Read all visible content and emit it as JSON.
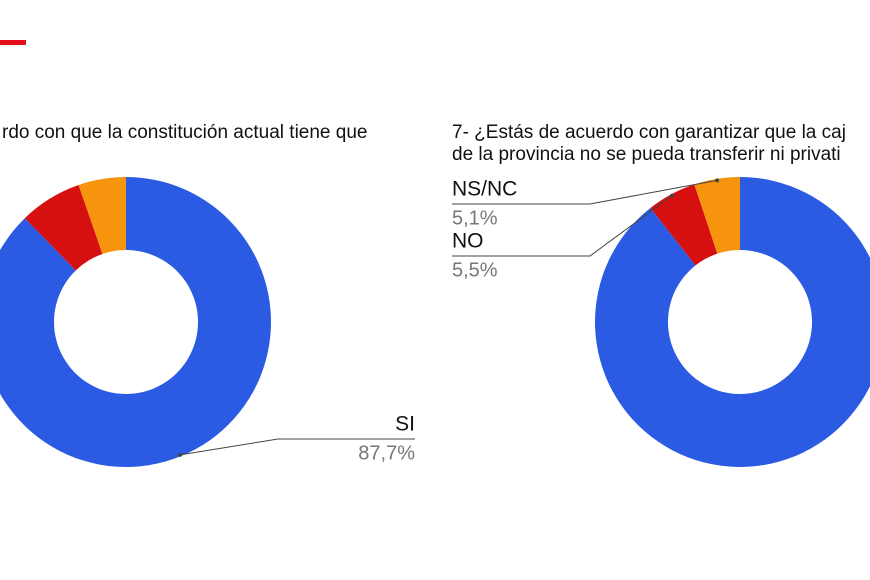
{
  "chart_data": [
    {
      "type": "donut",
      "title": "rdo con que la constitución actual tiene que",
      "categories": [
        "SI",
        null,
        null
      ],
      "values": [
        87.7,
        7.0,
        5.3
      ],
      "value_labels": [
        "87,7%",
        null,
        null
      ],
      "colors": [
        "#2b5be3",
        "#d60f10",
        "#f6950d"
      ]
    },
    {
      "type": "donut",
      "title": [
        "7- ¿Estás de acuerdo con garantizar que la caj",
        "de la provincia no se pueda transferir ni privati"
      ],
      "categories": [
        null,
        "NO",
        "NS/NC"
      ],
      "values": [
        89.4,
        5.5,
        5.1
      ],
      "value_labels": [
        null,
        "5,5%",
        "5,1%"
      ],
      "colors": [
        "#2b5be3",
        "#d60f10",
        "#f6950d"
      ]
    }
  ]
}
